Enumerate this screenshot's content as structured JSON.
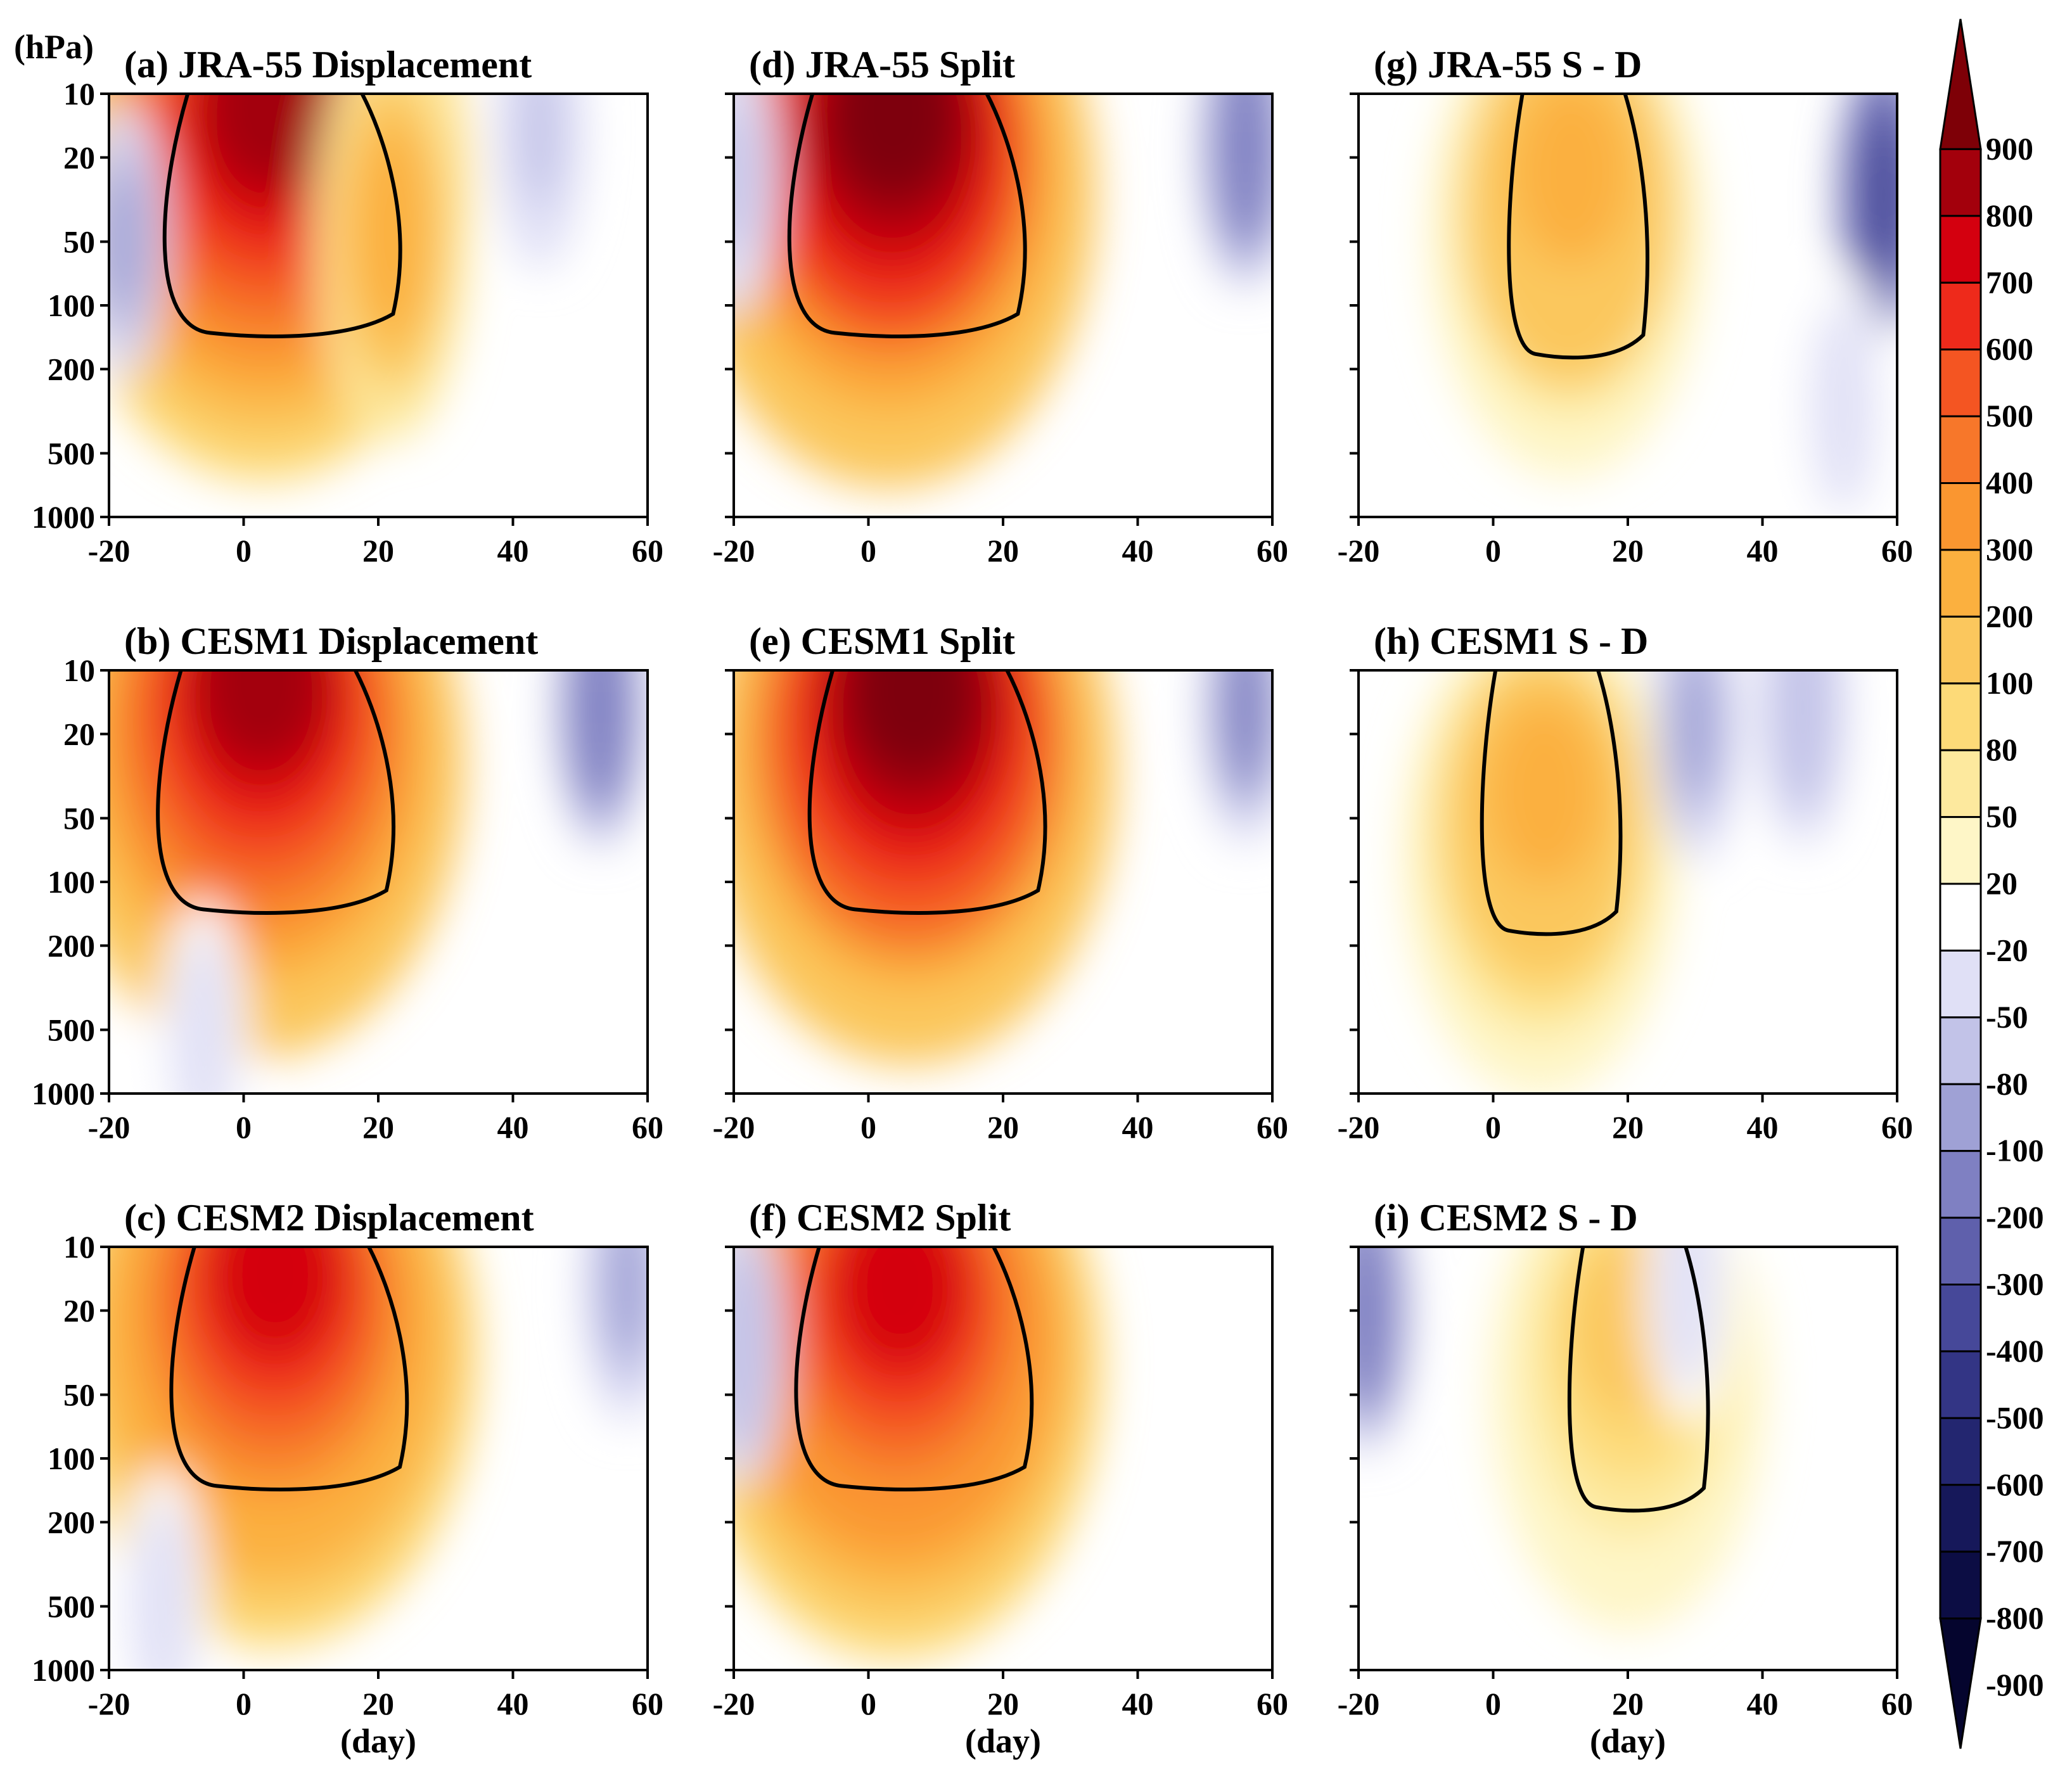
{
  "chart_data": {
    "type": "heatmap",
    "y_unit_label": "(hPa)",
    "x_label": "(day)",
    "x_ticks": [
      -20,
      0,
      20,
      40,
      60
    ],
    "y_ticks": [
      10,
      20,
      50,
      100,
      200,
      500,
      1000
    ],
    "y_scale": "log",
    "xlim": [
      -20,
      60
    ],
    "ylim": [
      1000,
      10
    ],
    "colorbar": {
      "labels": [
        900,
        800,
        700,
        600,
        500,
        400,
        300,
        200,
        100,
        80,
        50,
        20,
        -20,
        -50,
        -80,
        -100,
        -200,
        -300,
        -400,
        -500,
        -600,
        -700,
        -800,
        -900
      ],
      "colors": [
        "#7e0007",
        "#a3000c",
        "#d4000f",
        "#ee2a1b",
        "#f45522",
        "#f7772a",
        "#fa9630",
        "#fbb03f",
        "#fbc75d",
        "#fdda78",
        "#fde99e",
        "#fef6c7",
        "#ffffff",
        "#e0e0f6",
        "#c2c3e8",
        "#9fa1d5",
        "#7f80c2",
        "#5f60ac",
        "#464899",
        "#333585",
        "#232670",
        "#16185a",
        "#0c0d44",
        "#05052e"
      ],
      "extend": "both"
    },
    "panels": [
      {
        "id": "a",
        "label": "(a)",
        "title": "JRA-55 Displacement",
        "peak": {
          "day": 3,
          "plev": 13,
          "value": 820
        },
        "secondary_peak": {
          "day": 22,
          "plev": 45,
          "value": 260
        },
        "negatives": [
          {
            "day": -18,
            "plev": 50,
            "value": -80
          },
          {
            "day": 44,
            "plev": 15,
            "value": -60
          }
        ]
      },
      {
        "id": "d",
        "label": "(d)",
        "title": "JRA-55 Split",
        "peak": {
          "day": 3,
          "plev": 14,
          "value": 950
        },
        "negatives": [
          {
            "day": 56,
            "plev": 18,
            "value": -150
          },
          {
            "day": -20,
            "plev": 25,
            "value": -60
          }
        ]
      },
      {
        "id": "g",
        "label": "(g)",
        "title": "JRA-55   S - D",
        "peak": {
          "day": 11,
          "plev": 25,
          "value": 240
        },
        "negatives": [
          {
            "day": 58,
            "plev": 30,
            "value": -300
          },
          {
            "day": 52,
            "plev": 300,
            "value": -40
          }
        ]
      },
      {
        "id": "b",
        "label": "(b)",
        "title": "CESM1 Displacement",
        "peak": {
          "day": 2,
          "plev": 13,
          "value": 860
        },
        "negatives": [
          {
            "day": 53,
            "plev": 15,
            "value": -160
          },
          {
            "day": -6,
            "plev": 550,
            "value": -40
          }
        ]
      },
      {
        "id": "e",
        "label": "(e)",
        "title": "CESM1 Split",
        "peak": {
          "day": 6,
          "plev": 14,
          "value": 960
        },
        "negatives": [
          {
            "day": 56,
            "plev": 15,
            "value": -110
          }
        ]
      },
      {
        "id": "h",
        "label": "(h)",
        "title": "CESM1   S - D",
        "peak": {
          "day": 7,
          "plev": 40,
          "value": 230
        },
        "negatives": [
          {
            "day": 30,
            "plev": 18,
            "value": -90
          },
          {
            "day": 46,
            "plev": 15,
            "value": -70
          }
        ]
      },
      {
        "id": "c",
        "label": "(c)",
        "title": "CESM2 Displacement",
        "peak": {
          "day": 4,
          "plev": 15,
          "value": 700
        },
        "negatives": [
          {
            "day": -12,
            "plev": 500,
            "value": -40
          },
          {
            "day": 57,
            "plev": 15,
            "value": -80
          }
        ]
      },
      {
        "id": "f",
        "label": "(f)",
        "title": "CESM2 Split",
        "peak": {
          "day": 4,
          "plev": 17,
          "value": 720
        },
        "negatives": [
          {
            "day": -19,
            "plev": 30,
            "value": -70
          }
        ]
      },
      {
        "id": "i",
        "label": "(i)",
        "title": "CESM2   S - D",
        "peak": {
          "day": 20,
          "plev": 25,
          "value": 120
        },
        "negatives": [
          {
            "day": -19,
            "plev": 20,
            "value": -180
          },
          {
            "day": 29,
            "plev": 15,
            "value": -40
          }
        ]
      }
    ]
  }
}
